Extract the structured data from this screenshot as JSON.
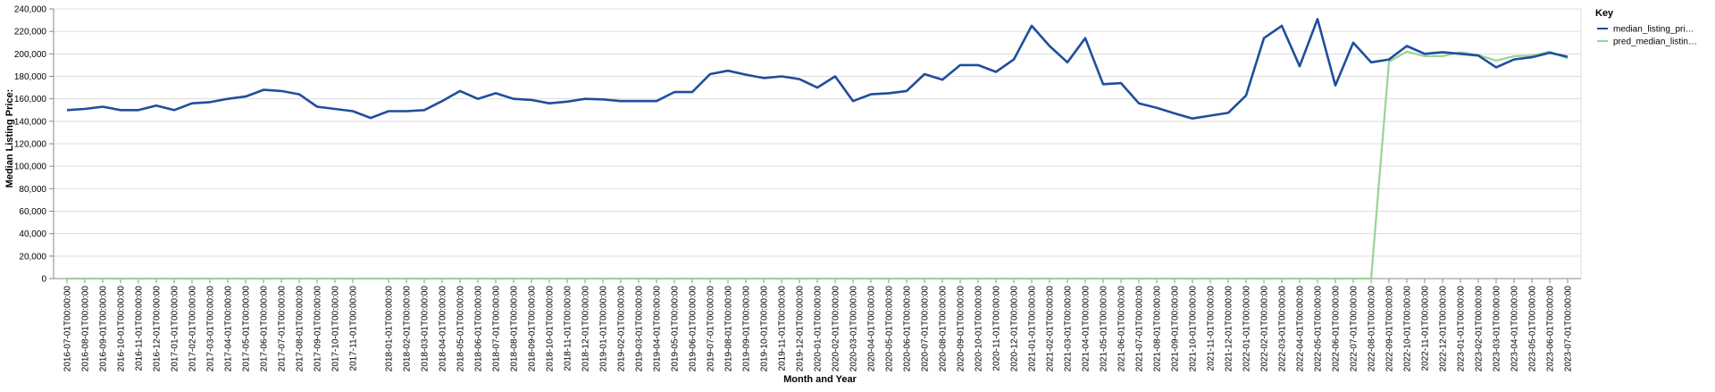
{
  "chart_data": {
    "type": "line",
    "xlabel": "Month and Year",
    "ylabel": "Median Listing Price:",
    "ylim": [
      0,
      240000
    ],
    "y_ticks": [
      "0",
      "20,000",
      "40,000",
      "60,000",
      "80,000",
      "100,000",
      "120,000",
      "140,000",
      "160,000",
      "180,000",
      "200,000",
      "220,000",
      "240,000"
    ],
    "grid": true,
    "legend": {
      "title": "Key",
      "placement": "top-right",
      "entries": [
        "median_listing_pri…",
        "pred_median_listin…"
      ]
    },
    "x": [
      "2016-07-01T00:00:00",
      "2016-08-01T00:00:00",
      "2016-09-01T00:00:00",
      "2016-10-01T00:00:00",
      "2016-11-01T00:00:00",
      "2016-12-01T00:00:00",
      "2017-01-01T00:00:00",
      "2017-02-01T00:00:00",
      "2017-03-01T00:00:00",
      "2017-04-01T00:00:00",
      "2017-05-01T00:00:00",
      "2017-06-01T00:00:00",
      "2017-07-01T00:00:00",
      "2017-08-01T00:00:00",
      "2017-09-01T00:00:00",
      "2017-10-01T00:00:00",
      "2017-11-01T00:00:00",
      "2017-12-01T00:00:00",
      "2018-01-01T00:00:00",
      "2018-02-01T00:00:00",
      "2018-03-01T00:00:00",
      "2018-04-01T00:00:00",
      "2018-05-01T00:00:00",
      "2018-06-01T00:00:00",
      "2018-07-01T00:00:00",
      "2018-08-01T00:00:00",
      "2018-09-01T00:00:00",
      "2018-10-01T00:00:00",
      "2018-11-01T00:00:00",
      "2018-12-01T00:00:00",
      "2019-01-01T00:00:00",
      "2019-02-01T00:00:00",
      "2019-03-01T00:00:00",
      "2019-04-01T00:00:00",
      "2019-05-01T00:00:00",
      "2019-06-01T00:00:00",
      "2019-07-01T00:00:00",
      "2019-08-01T00:00:00",
      "2019-09-01T00:00:00",
      "2019-10-01T00:00:00",
      "2019-11-01T00:00:00",
      "2019-12-01T00:00:00",
      "2020-01-01T00:00:00",
      "2020-02-01T00:00:00",
      "2020-03-01T00:00:00",
      "2020-04-01T00:00:00",
      "2020-05-01T00:00:00",
      "2020-06-01T00:00:00",
      "2020-07-01T00:00:00",
      "2020-08-01T00:00:00",
      "2020-09-01T00:00:00",
      "2020-10-01T00:00:00",
      "2020-11-01T00:00:00",
      "2020-12-01T00:00:00",
      "2021-01-01T00:00:00",
      "2021-02-01T00:00:00",
      "2021-03-01T00:00:00",
      "2021-04-01T00:00:00",
      "2021-05-01T00:00:00",
      "2021-06-01T00:00:00",
      "2021-07-01T00:00:00",
      "2021-08-01T00:00:00",
      "2021-09-01T00:00:00",
      "2021-10-01T00:00:00",
      "2021-11-01T00:00:00",
      "2021-12-01T00:00:00",
      "2022-01-01T00:00:00",
      "2022-02-01T00:00:00",
      "2022-03-01T00:00:00",
      "2022-04-01T00:00:00",
      "2022-05-01T00:00:00",
      "2022-06-01T00:00:00",
      "2022-07-01T00:00:00",
      "2022-08-01T00:00:00",
      "2022-09-01T00:00:00",
      "2022-10-01T00:00:00",
      "2022-11-01T00:00:00",
      "2022-12-01T00:00:00",
      "2023-01-01T00:00:00",
      "2023-02-01T00:00:00",
      "2023-03-01T00:00:00",
      "2023-04-01T00:00:00",
      "2023-05-01T00:00:00",
      "2023-06-01T00:00:00",
      "2023-07-01T00:00:00"
    ],
    "x_ticks": [
      "2016-07-01T00:00:00",
      "2016-08-01T00:00:00",
      "2016-09-01T00:00:00",
      "2016-10-01T00:00:00",
      "2016-11-01T00:00:00",
      "2016-12-01T00:00:00",
      "2017-01-01T00:00:00",
      "2017-02-01T00:00:00",
      "2017-03-01T00:00:00",
      "2017-04-01T00:00:00",
      "2017-05-01T00:00:00",
      "2017-06-01T00:00:00",
      "2017-07-01T00:00:00",
      "2017-08-01T00:00:00",
      "2017-09-01T00:00:00",
      "2017-10-01T00:00:00",
      "2017-11-01T00:00:00",
      "2018-01-01T00:00:00",
      "2018-02-01T00:00:00",
      "2018-03-01T00:00:00",
      "2018-04-01T00:00:00",
      "2018-05-01T00:00:00",
      "2018-06-01T00:00:00",
      "2018-07-01T00:00:00",
      "2018-08-01T00:00:00",
      "2018-09-01T00:00:00",
      "2018-10-01T00:00:00",
      "2018-11-01T00:00:00",
      "2018-12-01T00:00:00",
      "2019-01-01T00:00:00",
      "2019-02-01T00:00:00",
      "2019-03-01T00:00:00",
      "2019-04-01T00:00:00",
      "2019-05-01T00:00:00",
      "2019-06-01T00:00:00",
      "2019-07-01T00:00:00",
      "2019-08-01T00:00:00",
      "2019-09-01T00:00:00",
      "2019-10-01T00:00:00",
      "2019-11-01T00:00:00",
      "2019-12-01T00:00:00",
      "2020-01-01T00:00:00",
      "2020-02-01T00:00:00",
      "2020-03-01T00:00:00",
      "2020-04-01T00:00:00",
      "2020-05-01T00:00:00",
      "2020-06-01T00:00:00",
      "2020-07-01T00:00:00",
      "2020-08-01T00:00:00",
      "2020-09-01T00:00:00",
      "2020-10-01T00:00:00",
      "2020-11-01T00:00:00",
      "2020-12-01T00:00:00",
      "2021-01-01T00:00:00",
      "2021-02-01T00:00:00",
      "2021-03-01T00:00:00",
      "2021-04-01T00:00:00",
      "2021-05-01T00:00:00",
      "2021-06-01T00:00:00",
      "2021-07-01T00:00:00",
      "2021-08-01T00:00:00",
      "2021-09-01T00:00:00",
      "2021-10-01T00:00:00",
      "2021-11-01T00:00:00",
      "2021-12-01T00:00:00",
      "2022-01-01T00:00:00",
      "2022-02-01T00:00:00",
      "2022-03-01T00:00:00",
      "2022-04-01T00:00:00",
      "2022-05-01T00:00:00",
      "2022-06-01T00:00:00",
      "2022-07-01T00:00:00",
      "2022-08-01T00:00:00",
      "2022-09-01T00:00:00",
      "2022-10-01T00:00:00",
      "2022-11-01T00:00:00",
      "2022-12-01T00:00:00",
      "2023-01-01T00:00:00",
      "2023-02-01T00:00:00",
      "2023-03-01T00:00:00",
      "2023-04-01T00:00:00",
      "2023-05-01T00:00:00",
      "2023-06-01T00:00:00",
      "2023-07-01T00:00:00"
    ],
    "series": [
      {
        "name": "median_listing_pri…",
        "color": "#1f4e9c",
        "values": [
          150000,
          151000,
          153000,
          150000,
          150000,
          154000,
          150000,
          156000,
          157000,
          160000,
          162000,
          168000,
          167000,
          164000,
          153000,
          151000,
          149000,
          143000,
          149000,
          149000,
          150000,
          158000,
          167000,
          160000,
          165000,
          160000,
          159000,
          156000,
          157500,
          160000,
          159500,
          158000,
          158000,
          158000,
          166000,
          166000,
          182000,
          185000,
          181500,
          178500,
          180000,
          177500,
          170000,
          180000,
          158000,
          164000,
          165000,
          167000,
          182000,
          177000,
          190000,
          190000,
          184000,
          195000,
          225000,
          207000,
          192500,
          214000,
          173000,
          174000,
          156000,
          152000,
          147000,
          142500,
          145000,
          147500,
          163000,
          214000,
          225000,
          189000,
          231000,
          172000,
          210000,
          192500,
          195000,
          207000,
          200000,
          201500,
          200000,
          198500,
          188000,
          195000,
          197000,
          201000,
          197500
        ]
      },
      {
        "name": "pred_median_listin…",
        "color": "#98d494",
        "values": [
          0,
          0,
          0,
          0,
          0,
          0,
          0,
          0,
          0,
          0,
          0,
          0,
          0,
          0,
          0,
          0,
          0,
          0,
          0,
          0,
          0,
          0,
          0,
          0,
          0,
          0,
          0,
          0,
          0,
          0,
          0,
          0,
          0,
          0,
          0,
          0,
          0,
          0,
          0,
          0,
          0,
          0,
          0,
          0,
          0,
          0,
          0,
          0,
          0,
          0,
          0,
          0,
          0,
          0,
          0,
          0,
          0,
          0,
          0,
          0,
          0,
          0,
          0,
          0,
          0,
          0,
          0,
          0,
          0,
          0,
          0,
          0,
          0,
          0,
          193000,
          202000,
          198000,
          198000,
          201500,
          199000,
          194000,
          198000,
          198500,
          202000,
          196000
        ]
      }
    ]
  }
}
